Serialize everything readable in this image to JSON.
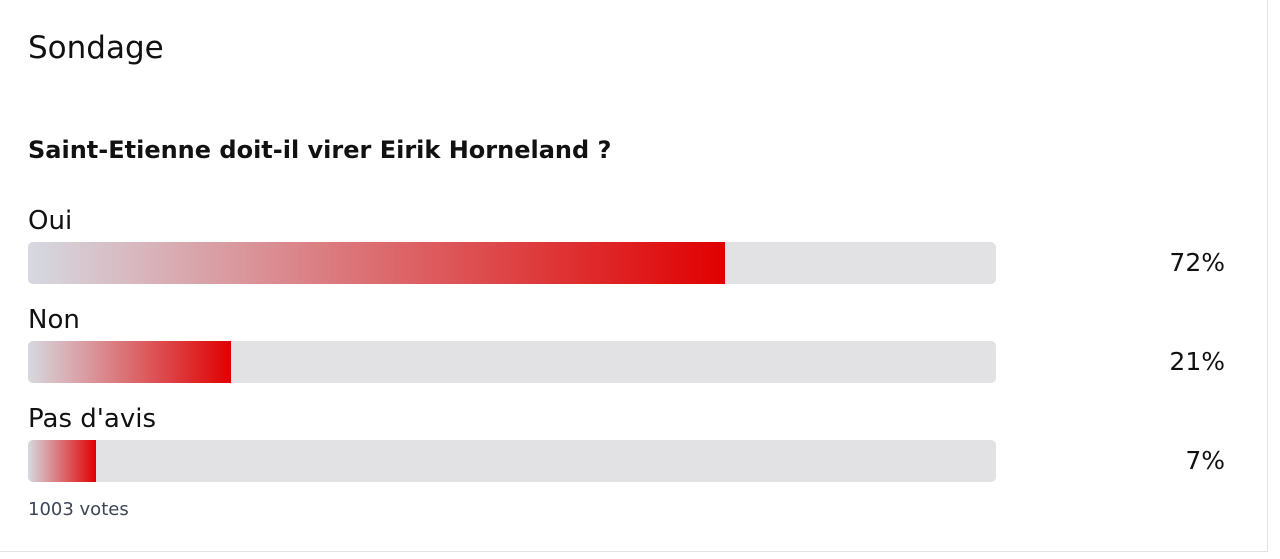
{
  "chart_data": {
    "type": "bar",
    "orientation": "horizontal",
    "title": "Sondage",
    "subtitle": "Saint-Etienne doit-il virer Eirik Horneland ?",
    "categories": [
      "Oui",
      "Non",
      "Pas d'avis"
    ],
    "values": [
      72,
      21,
      7
    ],
    "value_labels": [
      "72%",
      "21%",
      "7%"
    ],
    "color": "#e00000",
    "xlim": [
      0,
      100
    ],
    "note": "1003 votes"
  }
}
